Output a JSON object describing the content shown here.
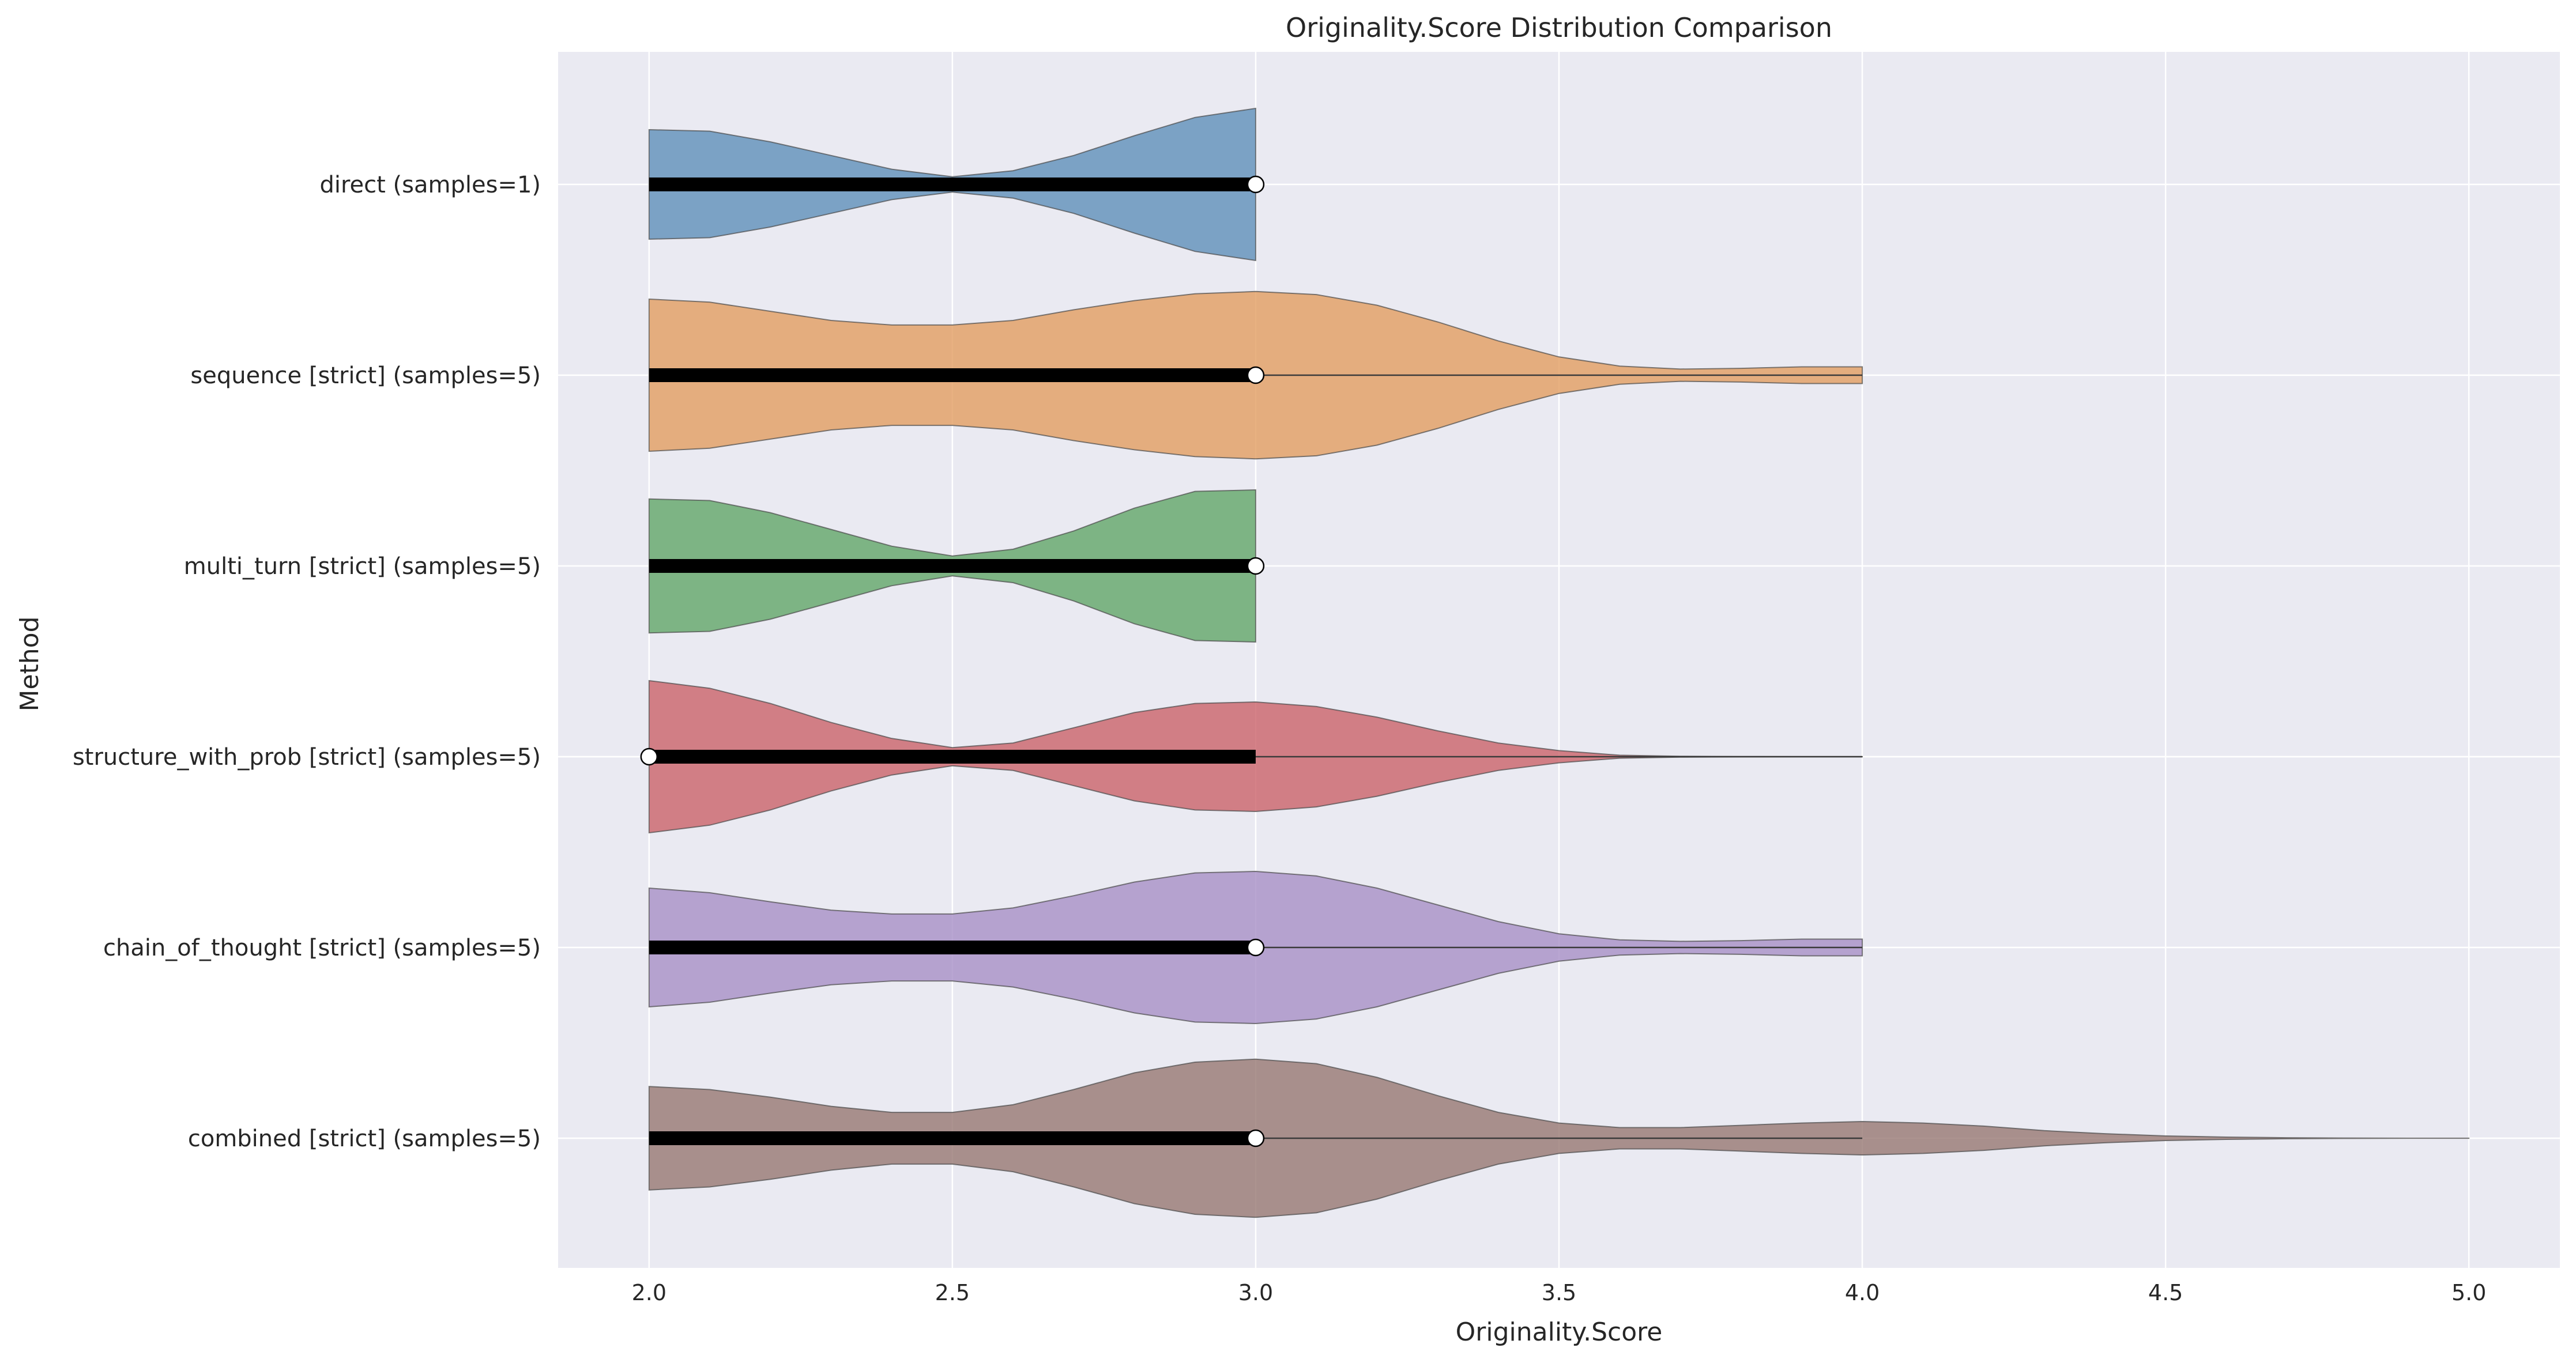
{
  "chart_data": {
    "type": "violin",
    "title": "Originality.Score Distribution Comparison",
    "xlabel": "Originality.Score",
    "ylabel": "Method",
    "xlim": [
      1.85,
      5.15
    ],
    "xticks": [
      "2.0",
      "2.5",
      "3.0",
      "3.5",
      "4.0",
      "4.5",
      "5.0"
    ],
    "xtick_values": [
      2.0,
      2.5,
      3.0,
      3.5,
      4.0,
      4.5,
      5.0
    ],
    "grid": true,
    "background": "#EAEAF2",
    "grid_color": "#FFFFFF",
    "categories": [
      "direct (samples=1)",
      "sequence [strict] (samples=5)",
      "multi_turn [strict] (samples=5)",
      "structure_with_prob [strict] (samples=5)",
      "chain_of_thought [strict] (samples=5)",
      "combined [strict] (samples=5)"
    ],
    "series": [
      {
        "color": "#5B8DB8",
        "range": [
          2.0,
          3.0
        ],
        "q1": 2.0,
        "q3": 3.0,
        "median": 3.0,
        "whisker": [
          2.0,
          3.0
        ],
        "density": [
          [
            2.0,
            0.72
          ],
          [
            2.1,
            0.7
          ],
          [
            2.2,
            0.56
          ],
          [
            2.3,
            0.38
          ],
          [
            2.4,
            0.2
          ],
          [
            2.5,
            0.1
          ],
          [
            2.6,
            0.18
          ],
          [
            2.7,
            0.38
          ],
          [
            2.8,
            0.64
          ],
          [
            2.9,
            0.88
          ],
          [
            3.0,
            1.0
          ]
        ]
      },
      {
        "color": "#E19B5E",
        "range": [
          2.0,
          4.0
        ],
        "q1": 2.0,
        "q3": 3.0,
        "median": 3.0,
        "whisker": [
          2.0,
          4.0
        ],
        "density": [
          [
            2.0,
            1.0
          ],
          [
            2.1,
            0.96
          ],
          [
            2.2,
            0.84
          ],
          [
            2.3,
            0.72
          ],
          [
            2.4,
            0.66
          ],
          [
            2.5,
            0.66
          ],
          [
            2.6,
            0.72
          ],
          [
            2.7,
            0.86
          ],
          [
            2.8,
            0.98
          ],
          [
            2.9,
            1.07
          ],
          [
            3.0,
            1.1
          ],
          [
            3.1,
            1.06
          ],
          [
            3.2,
            0.92
          ],
          [
            3.3,
            0.7
          ],
          [
            3.4,
            0.45
          ],
          [
            3.5,
            0.24
          ],
          [
            3.6,
            0.12
          ],
          [
            3.7,
            0.08
          ],
          [
            3.8,
            0.09
          ],
          [
            3.9,
            0.11
          ],
          [
            4.0,
            0.11
          ]
        ]
      },
      {
        "color": "#5EA465",
        "range": [
          2.0,
          3.0
        ],
        "q1": 2.0,
        "q3": 3.0,
        "median": 3.0,
        "whisker": [
          2.0,
          3.0
        ],
        "density": [
          [
            2.0,
            0.88
          ],
          [
            2.1,
            0.86
          ],
          [
            2.2,
            0.7
          ],
          [
            2.3,
            0.48
          ],
          [
            2.4,
            0.26
          ],
          [
            2.5,
            0.13
          ],
          [
            2.6,
            0.22
          ],
          [
            2.7,
            0.46
          ],
          [
            2.8,
            0.76
          ],
          [
            2.9,
            0.98
          ],
          [
            3.0,
            1.0
          ]
        ]
      },
      {
        "color": "#C95F67",
        "range": [
          2.0,
          4.0
        ],
        "q1": 2.0,
        "q3": 3.0,
        "median": 2.0,
        "whisker": [
          2.0,
          4.0
        ],
        "density": [
          [
            2.0,
            1.0
          ],
          [
            2.1,
            0.9
          ],
          [
            2.2,
            0.7
          ],
          [
            2.3,
            0.45
          ],
          [
            2.4,
            0.24
          ],
          [
            2.5,
            0.12
          ],
          [
            2.6,
            0.18
          ],
          [
            2.7,
            0.38
          ],
          [
            2.8,
            0.58
          ],
          [
            2.9,
            0.7
          ],
          [
            3.0,
            0.72
          ],
          [
            3.1,
            0.66
          ],
          [
            3.2,
            0.52
          ],
          [
            3.3,
            0.34
          ],
          [
            3.4,
            0.18
          ],
          [
            3.5,
            0.08
          ],
          [
            3.6,
            0.02
          ],
          [
            3.7,
            0.006
          ],
          [
            3.8,
            0.002
          ],
          [
            3.9,
            0.001
          ],
          [
            4.0,
            0.001
          ]
        ]
      },
      {
        "color": "#A58DC5",
        "range": [
          2.0,
          4.0
        ],
        "q1": 2.0,
        "q3": 3.0,
        "median": 3.0,
        "whisker": [
          2.0,
          4.0
        ],
        "density": [
          [
            2.0,
            0.78
          ],
          [
            2.1,
            0.72
          ],
          [
            2.2,
            0.6
          ],
          [
            2.3,
            0.49
          ],
          [
            2.4,
            0.44
          ],
          [
            2.5,
            0.44
          ],
          [
            2.6,
            0.52
          ],
          [
            2.7,
            0.68
          ],
          [
            2.8,
            0.86
          ],
          [
            2.9,
            0.98
          ],
          [
            3.0,
            1.0
          ],
          [
            3.1,
            0.94
          ],
          [
            3.2,
            0.78
          ],
          [
            3.3,
            0.56
          ],
          [
            3.4,
            0.34
          ],
          [
            3.5,
            0.18
          ],
          [
            3.6,
            0.1
          ],
          [
            3.7,
            0.08
          ],
          [
            3.8,
            0.09
          ],
          [
            3.9,
            0.11
          ],
          [
            4.0,
            0.11
          ]
        ]
      },
      {
        "color": "#957570",
        "range": [
          2.0,
          5.0
        ],
        "q1": 2.0,
        "q3": 3.0,
        "median": 3.0,
        "whisker": [
          2.0,
          4.0
        ],
        "density": [
          [
            2.0,
            0.68
          ],
          [
            2.1,
            0.64
          ],
          [
            2.2,
            0.54
          ],
          [
            2.3,
            0.42
          ],
          [
            2.4,
            0.34
          ],
          [
            2.5,
            0.34
          ],
          [
            2.6,
            0.44
          ],
          [
            2.7,
            0.64
          ],
          [
            2.8,
            0.86
          ],
          [
            2.9,
            1.0
          ],
          [
            3.0,
            1.04
          ],
          [
            3.1,
            0.98
          ],
          [
            3.2,
            0.8
          ],
          [
            3.3,
            0.56
          ],
          [
            3.4,
            0.34
          ],
          [
            3.5,
            0.2
          ],
          [
            3.6,
            0.14
          ],
          [
            3.7,
            0.14
          ],
          [
            3.8,
            0.17
          ],
          [
            3.9,
            0.2
          ],
          [
            4.0,
            0.22
          ],
          [
            4.1,
            0.2
          ],
          [
            4.2,
            0.16
          ],
          [
            4.3,
            0.1
          ],
          [
            4.4,
            0.06
          ],
          [
            4.5,
            0.03
          ],
          [
            4.6,
            0.015
          ],
          [
            4.7,
            0.007
          ],
          [
            4.8,
            0.003
          ],
          [
            4.9,
            0.001
          ],
          [
            5.0,
            0.001
          ]
        ]
      }
    ]
  }
}
